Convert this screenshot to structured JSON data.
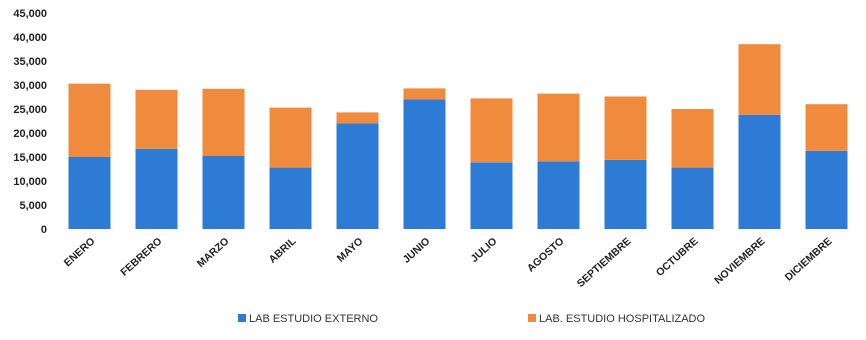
{
  "chart_data": {
    "type": "bar",
    "stacked": true,
    "title": "",
    "xlabel": "",
    "ylabel": "",
    "categories": [
      "ENERO",
      "FEBRERO",
      "MARZO",
      "ABRIL",
      "MAYO",
      "JUNIO",
      "JULIO",
      "AGOSTO",
      "SEPTIEMBRE",
      "OCTUBRE",
      "NOVIEMBRE",
      "DICIEMBRE"
    ],
    "series": [
      {
        "name": "LAB ESTUDIO EXTERNO",
        "color": "#2e7bd6",
        "values": [
          15000,
          16700,
          15200,
          12800,
          22000,
          27000,
          13900,
          14100,
          14400,
          12800,
          23800,
          16300
        ]
      },
      {
        "name": "LAB. ESTUDIO HOSPITALIZADO",
        "color": "#f08a3c",
        "values": [
          15300,
          12300,
          14000,
          12500,
          2300,
          2300,
          13300,
          14100,
          13200,
          12200,
          14700,
          9700
        ]
      }
    ],
    "yticks": [
      "0",
      "5,000",
      "10,000",
      "15,000",
      "20,000",
      "25,000",
      "30,000",
      "35,000",
      "40,000",
      "45,000"
    ],
    "ylim": [
      0,
      45000
    ],
    "grid": false,
    "legend_position": "bottom"
  }
}
